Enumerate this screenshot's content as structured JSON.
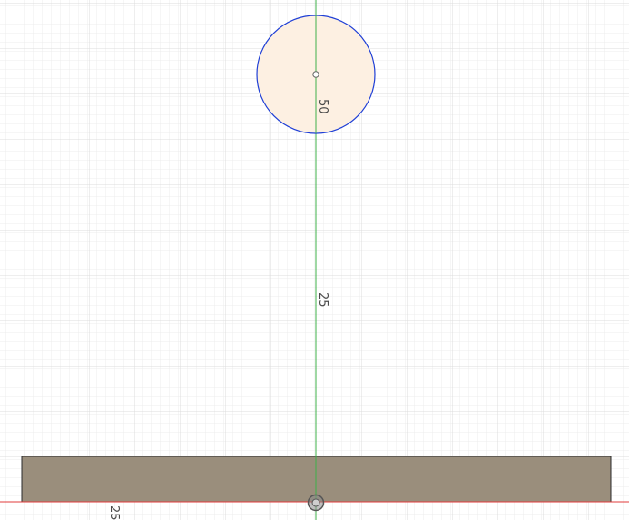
{
  "sketch": {
    "dimensions": {
      "circle_diameter": "50",
      "circle_height": "25",
      "bottom_offset": "25"
    },
    "colors": {
      "background": "#ffffff",
      "grid_minor": "#ececec",
      "grid_major": "#d8d8d8",
      "vertical_axis": "#3fb04a",
      "horizontal_axis": "#e23b3b",
      "circle_stroke": "#1f3fd6",
      "circle_fill": "#fdf0e2",
      "body_fill": "#9a8e7c",
      "body_stroke": "#2b2b2b",
      "origin_marker": "#666666"
    }
  }
}
